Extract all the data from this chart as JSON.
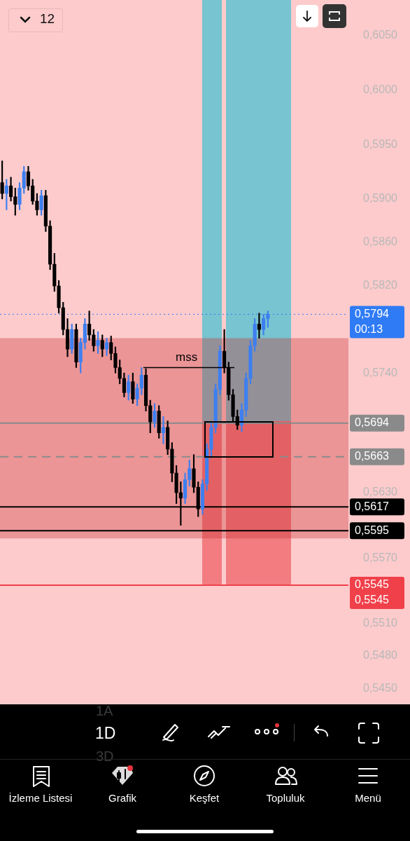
{
  "chart_data": {
    "type": "candlestick",
    "categories": [
      null,
      null,
      null,
      null,
      null,
      null,
      null,
      null,
      null,
      null,
      null,
      null,
      null,
      null,
      null,
      null,
      null,
      null,
      null,
      null,
      null,
      null,
      null,
      null,
      null,
      null,
      null,
      null,
      null,
      null,
      null,
      null,
      null,
      null,
      null,
      null,
      null,
      null,
      null,
      null,
      null,
      null,
      null,
      null,
      null,
      null,
      null,
      null,
      null,
      null,
      null,
      null,
      null,
      null,
      null,
      null,
      null,
      null,
      null,
      null,
      null,
      null,
      null,
      null,
      null,
      null,
      null,
      null,
      null,
      null,
      null,
      null,
      null,
      null,
      null,
      null,
      null,
      null,
      null,
      null
    ],
    "ohlc": [
      [
        0.5915,
        0.5935,
        0.59,
        0.5905
      ],
      [
        0.5905,
        0.5918,
        0.589,
        0.5912
      ],
      [
        0.5912,
        0.592,
        0.5898,
        0.5902
      ],
      [
        0.5902,
        0.591,
        0.5885,
        0.5895
      ],
      [
        0.5895,
        0.5915,
        0.589,
        0.591
      ],
      [
        0.591,
        0.593,
        0.5905,
        0.5925
      ],
      [
        0.5925,
        0.593,
        0.5908,
        0.5912
      ],
      [
        0.5912,
        0.5918,
        0.5895,
        0.5898
      ],
      [
        0.5898,
        0.5905,
        0.5885,
        0.589
      ],
      [
        0.589,
        0.5908,
        0.5885,
        0.5903
      ],
      [
        0.5903,
        0.5908,
        0.587,
        0.5875
      ],
      [
        0.5875,
        0.588,
        0.5835,
        0.584
      ],
      [
        0.584,
        0.585,
        0.5815,
        0.582
      ],
      [
        0.582,
        0.5825,
        0.5795,
        0.58
      ],
      [
        0.58,
        0.5805,
        0.5775,
        0.578
      ],
      [
        0.578,
        0.579,
        0.5755,
        0.5762
      ],
      [
        0.5762,
        0.5785,
        0.5758,
        0.578
      ],
      [
        0.578,
        0.5785,
        0.5745,
        0.575
      ],
      [
        0.575,
        0.5772,
        0.574,
        0.5768
      ],
      [
        0.5768,
        0.579,
        0.5762,
        0.5785
      ],
      [
        0.5785,
        0.5797,
        0.577,
        0.5775
      ],
      [
        0.5775,
        0.578,
        0.576,
        0.5765
      ],
      [
        0.5765,
        0.5778,
        0.5758,
        0.577
      ],
      [
        0.577,
        0.5775,
        0.5755,
        0.5762
      ],
      [
        0.5762,
        0.5772,
        0.5756,
        0.5768
      ],
      [
        0.5768,
        0.5774,
        0.5752,
        0.5758
      ],
      [
        0.5758,
        0.5764,
        0.574,
        0.5745
      ],
      [
        0.5745,
        0.5752,
        0.573,
        0.5735
      ],
      [
        0.5735,
        0.574,
        0.5718,
        0.5722
      ],
      [
        0.5722,
        0.5738,
        0.5715,
        0.5732
      ],
      [
        0.5732,
        0.574,
        0.5712,
        0.5716
      ],
      [
        0.5716,
        0.573,
        0.571,
        0.5726
      ],
      [
        0.5726,
        0.5745,
        0.572,
        0.5738
      ],
      [
        0.5738,
        0.5744,
        0.5705,
        0.571
      ],
      [
        0.571,
        0.5715,
        0.5685,
        0.5695
      ],
      [
        0.5695,
        0.5712,
        0.569,
        0.5705
      ],
      [
        0.5705,
        0.571,
        0.568,
        0.5685
      ],
      [
        0.5685,
        0.57,
        0.5675,
        0.569
      ],
      [
        0.569,
        0.5696,
        0.5665,
        0.567
      ],
      [
        0.567,
        0.5676,
        0.564,
        0.5648
      ],
      [
        0.5648,
        0.5655,
        0.562,
        0.563
      ],
      [
        0.563,
        0.564,
        0.56,
        0.5625
      ],
      [
        0.5625,
        0.5648,
        0.562,
        0.5642
      ],
      [
        0.5642,
        0.566,
        0.5636,
        0.5652
      ],
      [
        0.5652,
        0.5665,
        0.563,
        0.5635
      ],
      [
        0.5635,
        0.564,
        0.5608,
        0.5615
      ],
      [
        0.5615,
        0.5642,
        0.561,
        0.5638
      ],
      [
        0.5638,
        0.5675,
        0.5632,
        0.567
      ],
      [
        0.567,
        0.5695,
        0.5662,
        0.569
      ],
      [
        0.569,
        0.573,
        0.5685,
        0.5725
      ],
      [
        0.5725,
        0.5765,
        0.572,
        0.576
      ],
      [
        0.576,
        0.578,
        0.574,
        0.5745
      ],
      [
        0.5745,
        0.575,
        0.5715,
        0.572
      ],
      [
        0.572,
        0.5725,
        0.5695,
        0.57
      ],
      [
        0.57,
        0.5706,
        0.5688,
        0.5692
      ],
      [
        0.5692,
        0.5712,
        0.5686,
        0.5706
      ],
      [
        0.5706,
        0.574,
        0.57,
        0.5735
      ],
      [
        0.5735,
        0.577,
        0.573,
        0.5765
      ],
      [
        0.5765,
        0.579,
        0.576,
        0.5785
      ],
      [
        0.5785,
        0.5795,
        0.5772,
        0.578
      ],
      [
        0.578,
        0.5794,
        0.5775,
        0.579
      ],
      [
        0.579,
        0.5797,
        0.5782,
        0.5794
      ],
      null,
      null,
      null,
      null,
      null,
      null,
      null,
      null,
      null,
      null,
      null,
      null,
      null,
      null,
      null,
      null,
      null,
      null
    ],
    "colors": [
      "#000000",
      "#3d7ff0",
      "#000000",
      "#000000",
      "#3d7ff0",
      "#3d7ff0",
      "#000000",
      "#000000",
      "#000000",
      "#3d7ff0",
      "#000000",
      "#000000",
      "#000000",
      "#000000",
      "#000000",
      "#000000",
      "#3d7ff0",
      "#000000",
      "#3d7ff0",
      "#3d7ff0",
      "#000000",
      "#000000",
      "#3d7ff0",
      "#000000",
      "#3d7ff0",
      "#000000",
      "#000000",
      "#000000",
      "#000000",
      "#3d7ff0",
      "#000000",
      "#3d7ff0",
      "#3d7ff0",
      "#000000",
      "#000000",
      "#3d7ff0",
      "#000000",
      "#3d7ff0",
      "#000000",
      "#000000",
      "#000000",
      "#000000",
      "#3d7ff0",
      "#3d7ff0",
      "#000000",
      "#000000",
      "#3d7ff0",
      "#3d7ff0",
      "#3d7ff0",
      "#3d7ff0",
      "#3d7ff0",
      "#000000",
      "#000000",
      "#000000",
      "#000000",
      "#3d7ff0",
      "#3d7ff0",
      "#3d7ff0",
      "#3d7ff0",
      "#000000",
      "#3d7ff0",
      "#3d7ff0",
      null,
      null,
      null,
      null,
      null,
      null,
      null,
      null,
      null,
      null,
      null,
      null,
      null,
      null,
      null,
      null,
      null,
      null
    ],
    "ylim": [
      0.545,
      0.605
    ],
    "yticks": [
      {
        "value": 0.605,
        "label": "0,6050"
      },
      {
        "value": 0.6,
        "label": "0,6000"
      },
      {
        "value": 0.595,
        "label": "0,5950"
      },
      {
        "value": 0.59,
        "label": "0,5900"
      },
      {
        "value": 0.586,
        "label": "0,5860"
      },
      {
        "value": 0.582,
        "label": "0,5820"
      },
      {
        "value": 0.574,
        "label": "0,5740"
      },
      {
        "value": 0.563,
        "label": "0,5630"
      },
      {
        "value": 0.557,
        "label": "0,5570"
      },
      {
        "value": 0.551,
        "label": "0,5510"
      },
      {
        "value": 0.548,
        "label": "0,5480"
      },
      {
        "value": 0.545,
        "label": "0,5450"
      }
    ],
    "grid": false,
    "legend": false,
    "tick_labels": "y",
    "bands": [
      {
        "axis": "y",
        "from": 0.5588,
        "to": 0.5772,
        "color": "#c83232"
      }
    ],
    "ref_lines": [
      {
        "axis": "y",
        "value": 0.5794,
        "label": "0,5794",
        "color": "#2f7bf5",
        "line_style": "dotted"
      },
      {
        "axis": "y",
        "value": 0.5694,
        "label": "0,5694",
        "color": "#8a8a8a",
        "line_style": "solid"
      },
      {
        "axis": "y",
        "value": 0.5663,
        "label": "0,5663",
        "color": "#8a8a8a",
        "line_style": "dashed"
      },
      {
        "axis": "y",
        "value": 0.5617,
        "label": "0,5617",
        "color": "#000000",
        "line_style": "solid"
      },
      {
        "axis": "y",
        "value": 0.5595,
        "label": "0,5595",
        "color": "#000000",
        "line_style": "solid"
      },
      {
        "axis": "y",
        "value": 0.5545,
        "label": "0,5545",
        "color": "#f0404a",
        "line_style": "solid"
      }
    ],
    "annotations": [
      "mss",
      "00:13",
      "0,5545",
      "12",
      "1A",
      "1D",
      "3D",
      "İzleme Listesi",
      "Grafik",
      "Keşfet",
      "Topluluk",
      "Menü"
    ]
  }
}
